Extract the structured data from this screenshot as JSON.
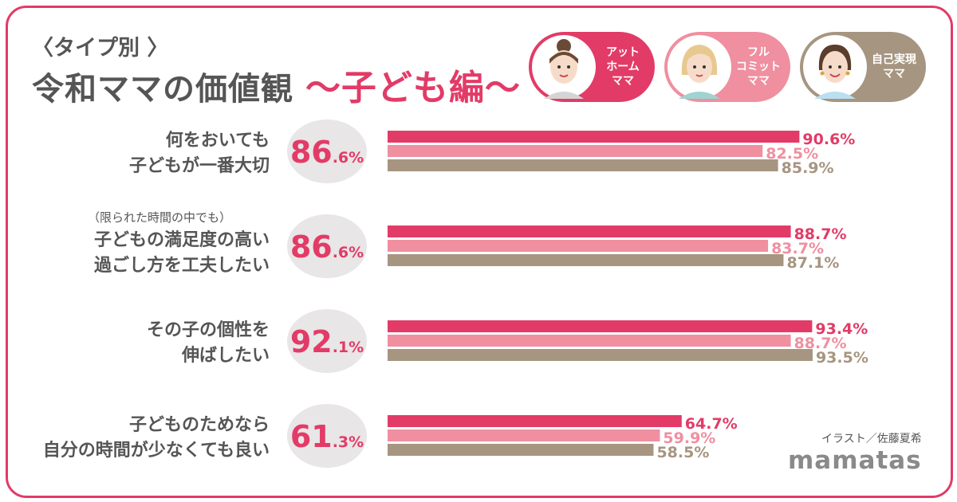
{
  "header": {
    "subtitle": "〈タイプ別 〉",
    "title_main": "令和ママの価値観",
    "title_accent": "〜子ども編〜"
  },
  "legend": [
    {
      "label": "アット\nホーム\nママ",
      "color": "#e23b67"
    },
    {
      "label": "フル\nコミット\nママ",
      "color": "#ef8fa0"
    },
    {
      "label": "自己実現\nママ",
      "color": "#a69580"
    }
  ],
  "credit": "イラスト／佐藤夏希",
  "logo": "mamatas",
  "chart_data": {
    "type": "bar",
    "orientation": "horizontal",
    "categories": [
      {
        "note": "",
        "lines": [
          "何をおいても",
          "子どもが一番大切"
        ]
      },
      {
        "note": "（限られた時間の中でも）",
        "lines": [
          "子どもの満足度の高い",
          "過ごし方を工夫したい"
        ]
      },
      {
        "note": "",
        "lines": [
          "その子の個性を",
          "伸ばしたい"
        ]
      },
      {
        "note": "",
        "lines": [
          "子どものためなら",
          "自分の時間が少なくても良い"
        ]
      }
    ],
    "totals": [
      {
        "int": "86",
        "dec": ".6%"
      },
      {
        "int": "86",
        "dec": ".6%"
      },
      {
        "int": "92",
        "dec": ".1%"
      },
      {
        "int": "61",
        "dec": ".3%"
      }
    ],
    "series": [
      {
        "name": "アットホームママ",
        "color": "#e23b67",
        "values": [
          90.6,
          88.7,
          93.4,
          64.7
        ],
        "labels": [
          "90.6%",
          "88.7%",
          "93.4%",
          "64.7%"
        ]
      },
      {
        "name": "フルコミットママ",
        "color": "#ef8fa0",
        "values": [
          82.5,
          83.7,
          88.7,
          59.9
        ],
        "labels": [
          "82.5%",
          "83.7%",
          "88.7%",
          "59.9%"
        ]
      },
      {
        "name": "自己実現ママ",
        "color": "#a69580",
        "values": [
          85.9,
          87.1,
          93.5,
          58.5
        ],
        "labels": [
          "85.9%",
          "87.1%",
          "93.5%",
          "58.5%"
        ]
      }
    ],
    "colors": {
      "total_circle": "#e8e6e6",
      "total_text": "#e23b67",
      "category_text": "#555555"
    }
  }
}
